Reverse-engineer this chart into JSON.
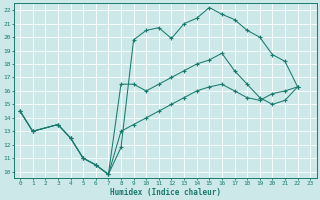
{
  "xlabel": "Humidex (Indice chaleur)",
  "background_color": "#cce8e8",
  "grid_color": "#ffffff",
  "line_color": "#1a7a6e",
  "xlim": [
    -0.5,
    23.5
  ],
  "ylim": [
    9.5,
    22.5
  ],
  "xticks": [
    0,
    1,
    2,
    3,
    4,
    5,
    6,
    7,
    8,
    9,
    10,
    11,
    12,
    13,
    14,
    15,
    16,
    17,
    18,
    19,
    20,
    21,
    22,
    23
  ],
  "yticks": [
    10,
    11,
    12,
    13,
    14,
    15,
    16,
    17,
    18,
    19,
    20,
    21,
    22
  ],
  "curve1_x": [
    0,
    1,
    3,
    4,
    5,
    6,
    7,
    8,
    9,
    10,
    11,
    12,
    13,
    14,
    15,
    16,
    17,
    18,
    19,
    20,
    21,
    22
  ],
  "curve1_y": [
    14.5,
    13.0,
    13.5,
    12.5,
    11.0,
    10.5,
    9.8,
    11.8,
    19.8,
    20.5,
    20.7,
    19.9,
    21.0,
    21.4,
    22.2,
    21.7,
    21.3,
    20.5,
    20.0,
    18.7,
    18.2,
    16.3
  ],
  "curve2_x": [
    0,
    1,
    3,
    4,
    5,
    6,
    7,
    8,
    9,
    10,
    11,
    12,
    13,
    14,
    15,
    16,
    17,
    18,
    19,
    20,
    21,
    22
  ],
  "curve2_y": [
    14.5,
    13.0,
    13.5,
    12.5,
    11.0,
    10.5,
    9.8,
    16.5,
    16.5,
    16.0,
    16.5,
    17.0,
    17.5,
    18.0,
    18.3,
    18.8,
    17.5,
    16.5,
    15.5,
    15.0,
    15.3,
    16.3
  ],
  "curve3_x": [
    0,
    1,
    3,
    4,
    5,
    6,
    7,
    8,
    9,
    10,
    11,
    12,
    13,
    14,
    15,
    16,
    17,
    18,
    19,
    20,
    21,
    22
  ],
  "curve3_y": [
    14.5,
    13.0,
    13.5,
    12.5,
    11.0,
    10.5,
    9.8,
    13.0,
    13.5,
    14.0,
    14.5,
    15.0,
    15.5,
    16.0,
    16.3,
    16.5,
    16.0,
    15.5,
    15.3,
    15.8,
    16.0,
    16.3
  ]
}
